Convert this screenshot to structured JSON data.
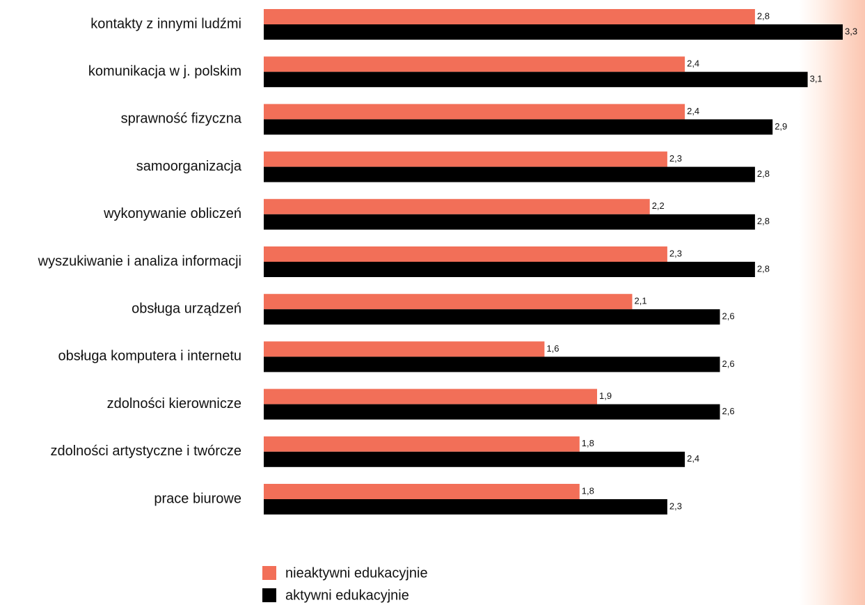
{
  "chart_data": {
    "type": "bar",
    "orientation": "horizontal",
    "categories": [
      "kontakty z innymi ludźmi",
      "komunikacja w j. polskim",
      "sprawność fizyczna",
      "samoorganizacja",
      "wykonywanie obliczeń",
      "wyszukiwanie i analiza informacji",
      "obsługa urządzeń",
      "obsługa komputera i internetu",
      "zdolności kierownicze",
      "zdolności artystyczne i twórcze",
      "prace biurowe"
    ],
    "series": [
      {
        "name": "nieaktywni edukacyjnie",
        "color": "#f26f58",
        "values": [
          2.8,
          2.4,
          2.4,
          2.3,
          2.2,
          2.3,
          2.1,
          1.6,
          1.9,
          1.8,
          1.8
        ],
        "labels": [
          "2,8",
          "2,4",
          "2,4",
          "2,3",
          "2,2",
          "2,3",
          "2,1",
          "1,6",
          "1,9",
          "1,8",
          "1,8"
        ]
      },
      {
        "name": "aktywni edukacyjnie",
        "color": "#000000",
        "values": [
          3.3,
          3.1,
          2.9,
          2.8,
          2.8,
          2.8,
          2.6,
          2.6,
          2.6,
          2.4,
          2.3
        ],
        "labels": [
          "3,3",
          "3,1",
          "2,9",
          "2,8",
          "2,8",
          "2,8",
          "2,6",
          "2,6",
          "2,6",
          "2,4",
          "2,3"
        ]
      }
    ],
    "xlim": [
      0,
      3.3
    ],
    "grid": false,
    "axes_visible": false,
    "legend_position": "bottom-center",
    "value_labels": "end-of-bar"
  }
}
